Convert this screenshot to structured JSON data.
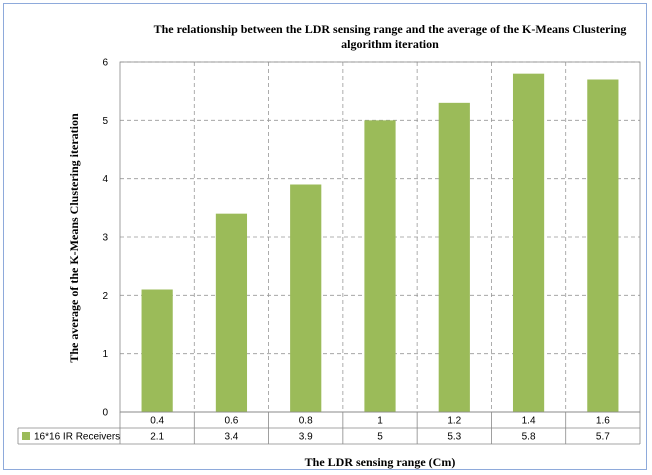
{
  "chart_data": {
    "type": "bar",
    "title_lines": [
      "The relationship between the LDR sensing range and the  average of the K-Means Clustering",
      "algorithm iteration"
    ],
    "xlabel": "The LDR sensing range (Cm)",
    "ylabel": "The  average of the K-Means Clustering iteration",
    "categories": [
      "0.4",
      "0.6",
      "0.8",
      "1",
      "1.2",
      "1.4",
      "1.6"
    ],
    "series": [
      {
        "name": "16*16 IR Receivers",
        "values": [
          2.1,
          3.4,
          3.9,
          5,
          5.3,
          5.8,
          5.7
        ],
        "value_labels": [
          "2.1",
          "3.4",
          "3.9",
          "5",
          "5.3",
          "5.8",
          "5.7"
        ],
        "color": "#9bbb59"
      }
    ],
    "ylim": [
      0,
      6
    ],
    "yticks": [
      "0",
      "1",
      "2",
      "3",
      "4",
      "5",
      "6"
    ],
    "grid": true,
    "legend": "data-table"
  }
}
